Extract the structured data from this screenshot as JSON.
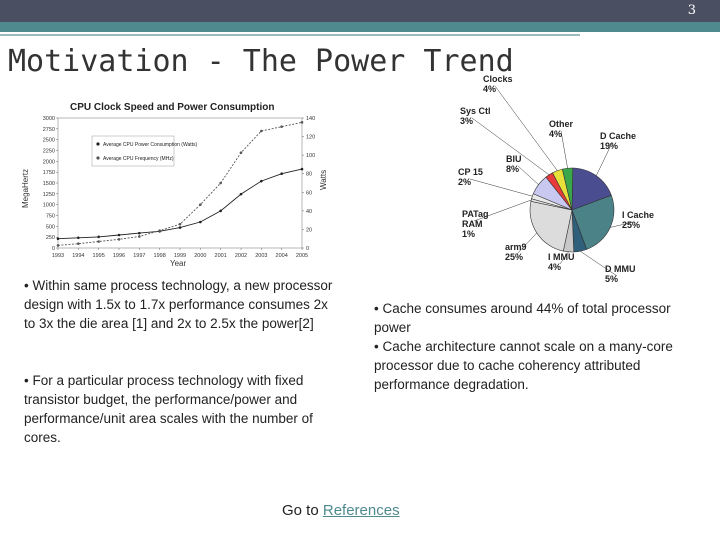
{
  "slide": {
    "number": "3",
    "title": "Motivation - The Power Trend"
  },
  "left_chart": {
    "title": "CPU Clock Speed and Power Consumption",
    "y_left_label": "MegaHertz",
    "y_right_label": "Watts",
    "x_label": "Year",
    "legend": [
      "Average CPU Power Consumption (Watts)",
      "Average CPU Frequency (MHz)"
    ]
  },
  "chart_data": [
    {
      "type": "line",
      "title": "CPU Clock Speed and Power Consumption",
      "xlabel": "Year",
      "ylabel": "MegaHertz",
      "ylabel_right": "Watts",
      "x": [
        "1993",
        "1994",
        "1995",
        "1996",
        "1997",
        "1998",
        "1999",
        "2000",
        "2001",
        "2002",
        "2003",
        "2004",
        "2005"
      ],
      "ylim": [
        0,
        3000
      ],
      "ylim_right": [
        0,
        140
      ],
      "y_ticks": [
        0,
        250,
        500,
        750,
        1000,
        1250,
        1500,
        1750,
        2000,
        2250,
        2500,
        2750,
        3000
      ],
      "y_right_ticks": [
        0,
        20,
        40,
        60,
        80,
        100,
        120,
        140
      ],
      "series": [
        {
          "name": "Average CPU Power Consumption (Watts)",
          "axis": "right",
          "values": [
            10,
            11,
            12,
            14,
            16,
            18,
            22,
            28,
            40,
            58,
            72,
            80,
            85
          ]
        },
        {
          "name": "Average CPU Frequency (MHz)",
          "axis": "left",
          "values": [
            60,
            100,
            150,
            200,
            266,
            400,
            550,
            1000,
            1500,
            2200,
            2700,
            2800,
            2900
          ]
        }
      ],
      "grid": false,
      "legend_position": "top-left"
    },
    {
      "type": "pie",
      "labels": [
        "D Cache",
        "I Cache",
        "D MMU",
        "I MMU",
        "arm9",
        "PATag RAM",
        "CP 15",
        "BIU",
        "Sys Ctl",
        "Clocks",
        "Other"
      ],
      "values": [
        19,
        25,
        5,
        4,
        25,
        1,
        2,
        8,
        3,
        4,
        4
      ],
      "label_text": [
        "D Cache 19%",
        "I Cache 25%",
        "D MMU 5%",
        "I MMU 4%",
        "arm9 25%",
        "PATag RAM 1%",
        "CP 15 2%",
        "BIU 8%",
        "Sys Ctl 3%",
        "Clocks 4%",
        "Other 4%"
      ],
      "colors": [
        "#4a4d8f",
        "#4a8288",
        "#2f5f7a",
        "#c8c8c8",
        "#dcdcdc",
        "#e6e6e6",
        "#e9e9e9",
        "#c8c8f0",
        "#e83a3a",
        "#e8e03a",
        "#3aa84a"
      ]
    }
  ],
  "left_bullets": [
    "• Within same process technology, a new processor design with 1.5x to 1.7x performance consumes 2x to 3x the die area [1] and 2x to 2.5x the power[2]",
    "• For a particular process technology with fixed transistor budget, the performance/power and performance/unit area scales with the number of cores."
  ],
  "right_bullets": [
    "• Cache consumes around 44% of total processor power",
    "• Cache architecture cannot scale on a many-core processor due to cache coherency attributed performance degradation."
  ],
  "goto": {
    "prefix": "Go to ",
    "link": "References"
  },
  "colors": {
    "top_bar": "#4a4f61",
    "accent": "#4f8a8f",
    "link": "#4f8a8f"
  }
}
